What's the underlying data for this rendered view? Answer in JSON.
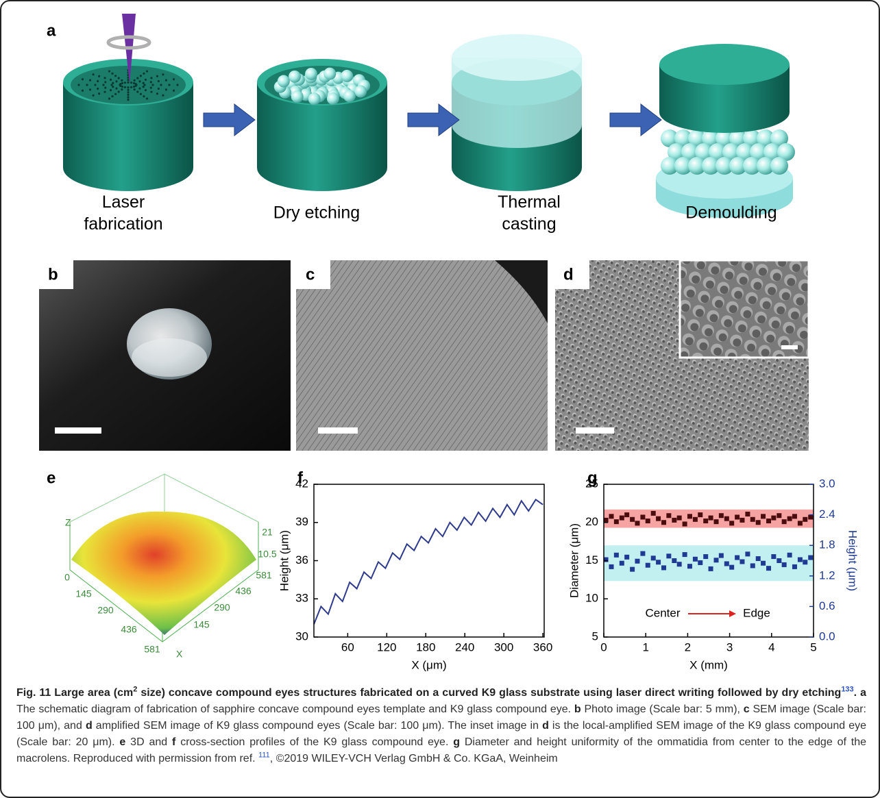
{
  "panel_labels": [
    "a",
    "b",
    "c",
    "d",
    "e"
  ],
  "steps": [
    "Laser fabrication",
    "Dry etching",
    "Thermal casting",
    "Demoulding"
  ],
  "surface": {
    "axis_z": "Z",
    "axis_x": "X",
    "z_ticks": [
      21,
      10.5,
      0
    ],
    "y_ticks": [
      581,
      436,
      290,
      145
    ],
    "x_ticks": [
      145,
      290,
      436,
      581
    ]
  },
  "chart_data": [
    {
      "type": "line",
      "label": "f",
      "x_label": "X (μm)",
      "y_label": "Height (μm)",
      "color": "#2e3a8c",
      "x": [
        8,
        19,
        30,
        41,
        52,
        63,
        74,
        85,
        96,
        107,
        118,
        129,
        140,
        151,
        162,
        173,
        184,
        195,
        206,
        217,
        228,
        239,
        250,
        261,
        272,
        283,
        294,
        305,
        316,
        327,
        338,
        349,
        360
      ],
      "values": [
        31.0,
        32.4,
        31.8,
        33.4,
        32.8,
        34.3,
        33.8,
        35.1,
        34.6,
        35.9,
        35.4,
        36.6,
        36.1,
        37.3,
        36.8,
        37.9,
        37.4,
        38.5,
        37.9,
        39.0,
        38.4,
        39.4,
        38.8,
        39.8,
        39.1,
        40.1,
        39.4,
        40.4,
        39.6,
        40.7,
        39.9,
        40.8,
        40.4
      ],
      "xlim": [
        8,
        362
      ],
      "xticks": [
        60,
        120,
        180,
        240,
        300,
        360
      ],
      "ylim": [
        30,
        42
      ],
      "yticks": [
        30,
        33,
        36,
        39,
        42
      ]
    },
    {
      "type": "scatter",
      "label": "g",
      "x_label": "X (mm)",
      "y_label": "Diameter (μm)",
      "y2_label": "Height (μm)",
      "y2_color": "#1f3a93",
      "annotations": [
        "Center",
        "Edge"
      ],
      "x": [
        0.05,
        0.18,
        0.3,
        0.43,
        0.55,
        0.68,
        0.8,
        0.93,
        1.05,
        1.18,
        1.3,
        1.43,
        1.55,
        1.68,
        1.8,
        1.93,
        2.05,
        2.18,
        2.3,
        2.43,
        2.55,
        2.68,
        2.8,
        2.93,
        3.05,
        3.18,
        3.3,
        3.43,
        3.55,
        3.68,
        3.8,
        3.93,
        4.05,
        4.18,
        4.3,
        4.43,
        4.55,
        4.68,
        4.8,
        4.93
      ],
      "series": [
        {
          "color": "#4a0c0c",
          "values": [
            20.3,
            20.8,
            20.1,
            20.6,
            21.0,
            20.4,
            19.9,
            20.7,
            20.2,
            21.2,
            20.5,
            20.0,
            20.9,
            20.3,
            20.6,
            19.8,
            20.8,
            20.4,
            21.0,
            20.2,
            20.6,
            20.1,
            20.9,
            20.5,
            19.9,
            20.7,
            20.3,
            21.1,
            20.4,
            20.0,
            20.8,
            20.2,
            20.6,
            20.9,
            20.1,
            20.5,
            20.8,
            19.9,
            20.4,
            20.7
          ]
        },
        {
          "color": "#1f3a93",
          "axis": "y2",
          "values": [
            1.52,
            1.38,
            1.61,
            1.45,
            1.57,
            1.33,
            1.49,
            1.64,
            1.41,
            1.55,
            1.47,
            1.36,
            1.59,
            1.5,
            1.43,
            1.62,
            1.39,
            1.53,
            1.46,
            1.58,
            1.34,
            1.51,
            1.6,
            1.44,
            1.37,
            1.56,
            1.48,
            1.63,
            1.4,
            1.54,
            1.45,
            1.35,
            1.58,
            1.5,
            1.42,
            1.61,
            1.38,
            1.52,
            1.47,
            1.56
          ]
        }
      ],
      "bands": [
        {
          "range": [
            19.3,
            21.7
          ],
          "color": "#f5a3a3"
        },
        {
          "range": [
            1.1,
            1.8
          ],
          "axis": "y2",
          "color": "#c2efef"
        }
      ],
      "xlim": [
        0,
        5
      ],
      "xticks": [
        0,
        1,
        2,
        3,
        4,
        5
      ],
      "ylim": [
        5,
        25
      ],
      "yticks": [
        5,
        10,
        15,
        20,
        25
      ],
      "y2lim": [
        0,
        3
      ],
      "y2ticks": [
        {
          "value": 0,
          "label": "0.0"
        },
        0.6,
        1.2,
        1.8,
        2.4,
        {
          "value": 3,
          "label": "3.0"
        }
      ]
    }
  ],
  "caption": {
    "segments": [
      "Fig. 11 Large area (cm",
      "2",
      " size) concave compound eyes structures fabricated on a curved K9 glass substrate using laser direct writing followed by dry etching",
      "133",
      ". ",
      "a",
      " The schematic diagram of fabrication of sapphire concave compound eyes template and K9 glass compound eye. ",
      "b",
      " Photo image (Scale bar: 5 mm), ",
      "c",
      " SEM image (Scale bar: 100 μm), and ",
      "d",
      " amplified SEM image of K9 glass compound eyes (Scale bar: 100 μm). The inset image in ",
      "d",
      " is the local-amplified SEM image of the K9 glass compound eye (Scale bar: 20 μm). ",
      "e",
      " 3D and ",
      "f",
      " cross-section profiles of the K9 glass compound eye. ",
      "g",
      " Diameter and height uniformity of the ommatidia from center to the edge of the macrolens. Reproduced with permission from ref. ",
      "111",
      ", ©2019 WILEY-VCH Verlag GmbH & Co. KGaA, Weinheim"
    ]
  }
}
